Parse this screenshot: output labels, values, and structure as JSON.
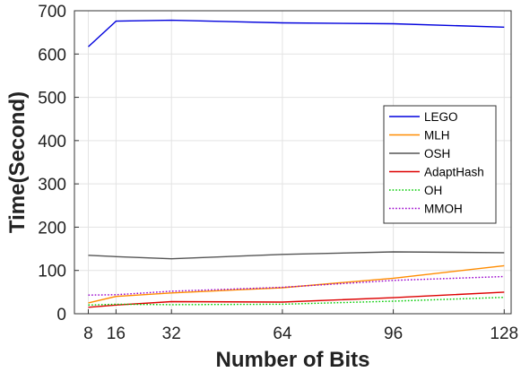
{
  "chart_data": {
    "type": "line",
    "title": "",
    "xlabel": "Number of Bits",
    "ylabel": "Time(Second)",
    "x": [
      8,
      16,
      32,
      64,
      96,
      128
    ],
    "xticks": [
      "8",
      "16",
      "32",
      "64",
      "96",
      "128"
    ],
    "xlim": [
      4,
      130
    ],
    "ylim": [
      0,
      700
    ],
    "yticks": [
      "0",
      "100",
      "200",
      "300",
      "400",
      "500",
      "600",
      "700"
    ],
    "grid": true,
    "legend_position": "right",
    "series": [
      {
        "name": "LEGO",
        "color": "#0000dd",
        "style": "solid",
        "values": [
          617,
          676,
          678,
          672,
          670,
          662
        ]
      },
      {
        "name": "MLH",
        "color": "#ff8c00",
        "style": "solid",
        "values": [
          25,
          40,
          48,
          60,
          82,
          111
        ]
      },
      {
        "name": "OSH",
        "color": "#555555",
        "style": "solid",
        "values": [
          135,
          132,
          127,
          137,
          143,
          141
        ]
      },
      {
        "name": "AdaptHash",
        "color": "#dd0000",
        "style": "solid",
        "values": [
          15,
          20,
          28,
          27,
          37,
          50
        ]
      },
      {
        "name": "OH",
        "color": "#00cc00",
        "style": "dotted",
        "values": [
          20,
          22,
          21,
          22,
          29,
          38
        ]
      },
      {
        "name": "MMOH",
        "color": "#9900cc",
        "style": "dotted",
        "values": [
          43,
          44,
          52,
          61,
          77,
          86
        ]
      }
    ]
  }
}
